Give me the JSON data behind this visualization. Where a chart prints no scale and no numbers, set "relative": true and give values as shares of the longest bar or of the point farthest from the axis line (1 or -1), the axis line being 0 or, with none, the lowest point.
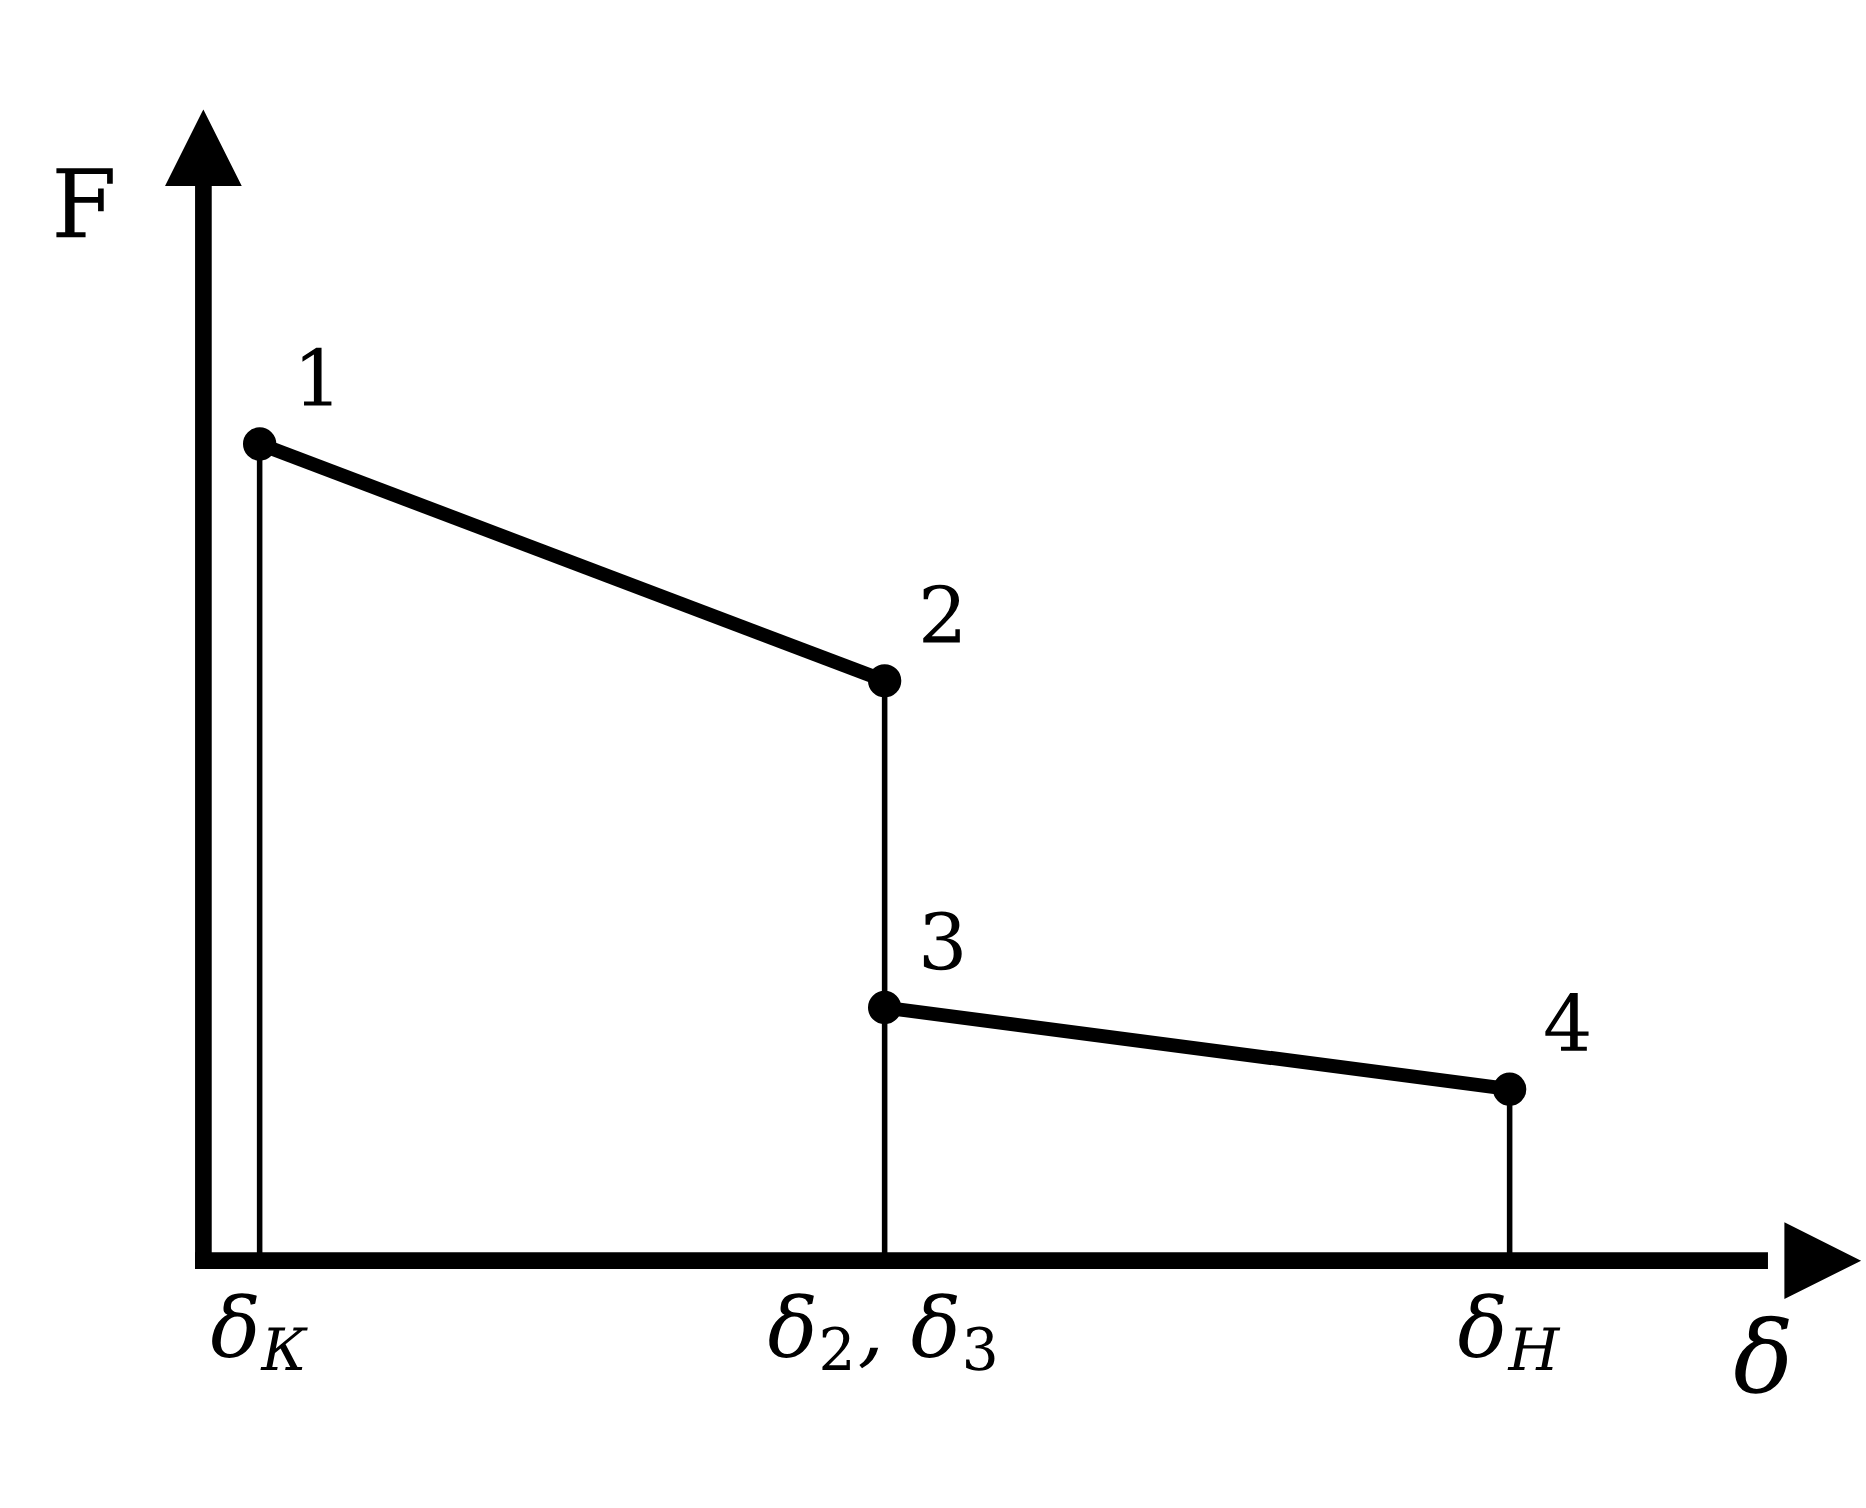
{
  "chart_data": {
    "type": "line",
    "relative": true,
    "xlabel": "δ",
    "ylabel": "F",
    "categories": [
      "δ$_{К}$",
      "δ$_{2}$, δ$_{3}$",
      "δ$_{Н}$"
    ],
    "series": [
      {
        "color": "#000000",
        "values": [
          1,
          0.71,
          null
        ]
      },
      {
        "color": "#000000",
        "values": [
          null,
          0.31,
          0.21
        ]
      }
    ],
    "annotations": [
      {
        "text": "1",
        "x": "δ$_{К}$",
        "y": 1
      },
      {
        "text": "2",
        "x": "δ$_{2}$, δ$_{3}$",
        "y": 0.71
      },
      {
        "text": "3",
        "x": "δ$_{2}$, δ$_{3}$",
        "y": 0.31
      },
      {
        "text": "4",
        "x": "δ$_{Н}$",
        "y": 0.21
      }
    ],
    "marker": "circle",
    "grid": "x",
    "legend": false
  }
}
